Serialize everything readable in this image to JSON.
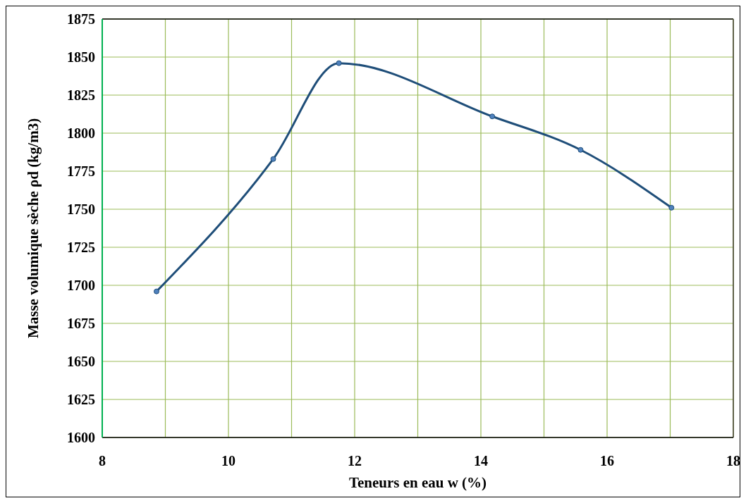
{
  "chart_data": {
    "type": "line",
    "xlabel": "Teneurs en eau w (%)",
    "ylabel": "Masse volumique sèche ρd (kg/m3)",
    "x": [
      8.86,
      10.71,
      11.75,
      14.18,
      15.58,
      17.02
    ],
    "series": [
      {
        "color": "#1f4e79",
        "values": [
          1696,
          1783,
          1846,
          1811,
          1789,
          1751
        ]
      }
    ],
    "xlim": [
      8,
      18
    ],
    "xticks": [
      8,
      {
        "value": 9,
        "label": null
      },
      10,
      {
        "value": 11,
        "label": null
      },
      12,
      {
        "value": 13,
        "label": null
      },
      14,
      {
        "value": 15,
        "label": null
      },
      16,
      {
        "value": 17,
        "label": null
      },
      18
    ],
    "ylim": [
      1600,
      1875
    ],
    "yticks": [
      1600,
      1625,
      1650,
      1675,
      1700,
      1725,
      1750,
      1775,
      1800,
      1825,
      1850,
      1875
    ],
    "grid": true,
    "marker": "circle",
    "line_style": "solid"
  }
}
